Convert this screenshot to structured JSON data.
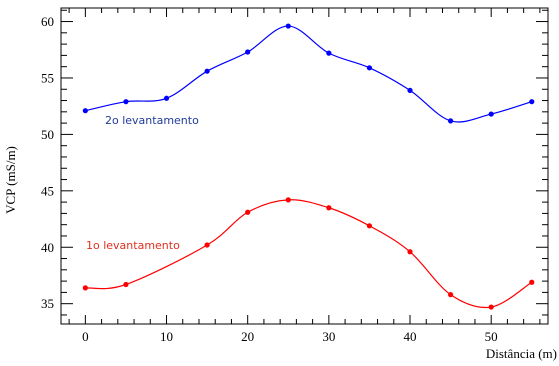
{
  "chart_data": {
    "type": "line",
    "title": "",
    "xlabel": "Distância (m)",
    "ylabel": "VCP (mS/m)",
    "xlim": [
      -3,
      57
    ],
    "ylim": [
      33.2,
      61.2
    ],
    "x_ticks": [
      0,
      10,
      20,
      30,
      40,
      50
    ],
    "y_ticks": [
      35,
      40,
      45,
      50,
      55,
      60
    ],
    "grid": false,
    "legend": "none",
    "x": [
      0,
      5,
      10,
      15,
      20,
      25,
      30,
      35,
      40,
      45,
      50,
      55
    ],
    "series": [
      {
        "name": "2o levantamento",
        "color": "#0000ff",
        "label_color": "#1f3c9a",
        "values": [
          52.1,
          52.9,
          53.2,
          55.6,
          57.3,
          59.6,
          57.2,
          55.9,
          53.9,
          51.2,
          51.8,
          52.9
        ]
      },
      {
        "name": "1o levantamento",
        "color": "#ff0000",
        "label_color": "#e0301e",
        "values": [
          36.4,
          36.7,
          null,
          40.2,
          43.1,
          44.2,
          43.5,
          41.9,
          39.6,
          35.8,
          34.7,
          36.9
        ]
      }
    ],
    "annotations": [
      {
        "text": "2o levantamento",
        "series": 0
      },
      {
        "text": "1o levantamento",
        "series": 1
      }
    ]
  }
}
